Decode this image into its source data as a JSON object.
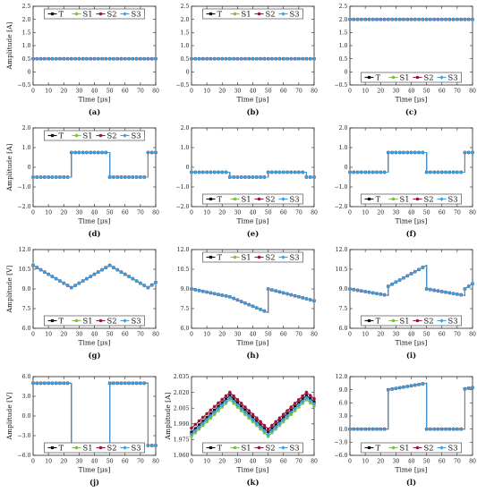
{
  "legend": {
    "series": [
      {
        "name": "T",
        "color": "#111111",
        "marker": "square"
      },
      {
        "name": "S1",
        "color": "#7cc242",
        "marker": "circle"
      },
      {
        "name": "S2",
        "color": "#a3123a",
        "marker": "circle"
      },
      {
        "name": "S3",
        "color": "#3b9ee0",
        "marker": "diamond"
      }
    ]
  },
  "chart_data": [
    {
      "type": "line",
      "label": "(a)",
      "xlabel": "Time [μs]",
      "ylabel": "Amplitude [A]",
      "xlim": [
        0,
        80
      ],
      "ylim": [
        -0.5,
        2.5
      ],
      "xticks": [
        "0",
        "10",
        "20",
        "30",
        "40",
        "50",
        "60",
        "70",
        "80"
      ],
      "yticks": [
        "−0.5",
        "0",
        "0.5",
        "1.0",
        "1.5",
        "2.0",
        "2.5"
      ],
      "legend_position": "top-center",
      "x": [
        0,
        80
      ],
      "series": [
        {
          "name": "T",
          "values": [
            0.5,
            0.5
          ]
        },
        {
          "name": "S1",
          "values": [
            0.5,
            0.5
          ]
        },
        {
          "name": "S2",
          "values": [
            0.5,
            0.5
          ]
        },
        {
          "name": "S3",
          "values": [
            0.5,
            0.5
          ]
        }
      ]
    },
    {
      "type": "line",
      "label": "(b)",
      "xlabel": "Time [μs]",
      "ylabel": "",
      "xlim": [
        0,
        80
      ],
      "ylim": [
        -0.5,
        2.5
      ],
      "xticks": [
        "0",
        "10",
        "20",
        "30",
        "40",
        "50",
        "60",
        "70",
        "80"
      ],
      "yticks": [
        "−0.5",
        "0",
        "0.5",
        "1.0",
        "1.5",
        "2.0",
        "2.5"
      ],
      "legend_position": "top-center",
      "x": [
        0,
        80
      ],
      "series": [
        {
          "name": "T",
          "values": [
            0.5,
            0.5
          ]
        },
        {
          "name": "S1",
          "values": [
            0.5,
            0.5
          ]
        },
        {
          "name": "S2",
          "values": [
            0.5,
            0.5
          ]
        },
        {
          "name": "S3",
          "values": [
            0.5,
            0.5
          ]
        }
      ]
    },
    {
      "type": "line",
      "label": "(c)",
      "xlabel": "Time [μs]",
      "ylabel": "",
      "xlim": [
        0,
        80
      ],
      "ylim": [
        -0.5,
        2.5
      ],
      "xticks": [
        "0",
        "10",
        "20",
        "30",
        "40",
        "50",
        "60",
        "70",
        "80"
      ],
      "yticks": [
        "−0.5",
        "0",
        "0.5",
        "1.0",
        "1.5",
        "2.0",
        "2.5"
      ],
      "legend_position": "bottom-center",
      "x": [
        0,
        80
      ],
      "series": [
        {
          "name": "T",
          "values": [
            2.0,
            2.0
          ]
        },
        {
          "name": "S1",
          "values": [
            2.0,
            2.0
          ]
        },
        {
          "name": "S2",
          "values": [
            2.0,
            2.0
          ]
        },
        {
          "name": "S3",
          "values": [
            2.0,
            2.0
          ]
        }
      ]
    },
    {
      "type": "line",
      "label": "(d)",
      "xlabel": "Time [μs]",
      "ylabel": "Amplitude [A]",
      "xlim": [
        0,
        80
      ],
      "ylim": [
        -2.0,
        2.0
      ],
      "xticks": [
        "0",
        "10",
        "20",
        "30",
        "40",
        "50",
        "60",
        "70",
        "80"
      ],
      "yticks": [
        "−2.0",
        "−1.0",
        "0",
        "1.0",
        "2.0"
      ],
      "legend_position": "top-center",
      "x": [
        0,
        25,
        25,
        50,
        50,
        75,
        75,
        80
      ],
      "series": [
        {
          "name": "T",
          "values": [
            -0.5,
            -0.5,
            0.75,
            0.75,
            -0.5,
            -0.5,
            0.75,
            0.75
          ]
        },
        {
          "name": "S1",
          "values": [
            -0.5,
            -0.5,
            0.75,
            0.75,
            -0.5,
            -0.5,
            0.75,
            0.75
          ]
        },
        {
          "name": "S2",
          "values": [
            -0.5,
            -0.5,
            0.75,
            0.75,
            -0.5,
            -0.5,
            0.75,
            0.75
          ]
        },
        {
          "name": "S3",
          "values": [
            -0.5,
            -0.5,
            0.75,
            0.75,
            -0.5,
            -0.5,
            0.75,
            0.75
          ]
        }
      ]
    },
    {
      "type": "line",
      "label": "(e)",
      "xlabel": "Time [μs]",
      "ylabel": "",
      "xlim": [
        0,
        80
      ],
      "ylim": [
        -2.0,
        2.0
      ],
      "xticks": [
        "0",
        "10",
        "20",
        "30",
        "40",
        "50",
        "60",
        "70",
        "80"
      ],
      "yticks": [
        "−2.0",
        "−1.0",
        "0",
        "1.0",
        "2.0"
      ],
      "legend_position": "bottom-center",
      "x": [
        0,
        25,
        25,
        50,
        50,
        75,
        75,
        80
      ],
      "series": [
        {
          "name": "T",
          "values": [
            -0.25,
            -0.25,
            -0.5,
            -0.5,
            -0.25,
            -0.25,
            -0.5,
            -0.5
          ]
        },
        {
          "name": "S1",
          "values": [
            -0.25,
            -0.25,
            -0.5,
            -0.5,
            -0.25,
            -0.25,
            -0.5,
            -0.5
          ]
        },
        {
          "name": "S2",
          "values": [
            -0.25,
            -0.25,
            -0.5,
            -0.5,
            -0.25,
            -0.25,
            -0.5,
            -0.5
          ]
        },
        {
          "name": "S3",
          "values": [
            -0.25,
            -0.25,
            -0.5,
            -0.5,
            -0.25,
            -0.25,
            -0.5,
            -0.5
          ]
        }
      ]
    },
    {
      "type": "line",
      "label": "(f)",
      "xlabel": "Time [μs]",
      "ylabel": "",
      "xlim": [
        0,
        80
      ],
      "ylim": [
        -2.0,
        2.0
      ],
      "xticks": [
        "0",
        "10",
        "20",
        "30",
        "40",
        "50",
        "60",
        "70",
        "80"
      ],
      "yticks": [
        "−2.0",
        "−1.0",
        "0",
        "1.0",
        "2.0"
      ],
      "legend_position": "bottom-center",
      "x": [
        0,
        25,
        25,
        50,
        50,
        75,
        75,
        80
      ],
      "series": [
        {
          "name": "T",
          "values": [
            -0.25,
            -0.25,
            0.75,
            0.75,
            -0.25,
            -0.25,
            0.75,
            0.75
          ]
        },
        {
          "name": "S1",
          "values": [
            -0.25,
            -0.25,
            0.75,
            0.75,
            -0.25,
            -0.25,
            0.75,
            0.75
          ]
        },
        {
          "name": "S2",
          "values": [
            -0.25,
            -0.25,
            0.75,
            0.75,
            -0.25,
            -0.25,
            0.75,
            0.75
          ]
        },
        {
          "name": "S3",
          "values": [
            -0.25,
            -0.25,
            0.75,
            0.75,
            -0.25,
            -0.25,
            0.75,
            0.75
          ]
        }
      ]
    },
    {
      "type": "line",
      "label": "(g)",
      "xlabel": "Time [μs]",
      "ylabel": "Amplitude [V]",
      "xlim": [
        0,
        80
      ],
      "ylim": [
        6.0,
        12.0
      ],
      "xticks": [
        "0",
        "10",
        "20",
        "30",
        "40",
        "50",
        "60",
        "70",
        "80"
      ],
      "yticks": [
        "6.0",
        "7.5",
        "9.0",
        "10.5",
        "12.0"
      ],
      "legend_position": "bottom-center",
      "x": [
        0,
        25,
        50,
        75,
        80
      ],
      "series": [
        {
          "name": "T",
          "values": [
            10.8,
            9.1,
            10.8,
            9.1,
            9.5
          ]
        },
        {
          "name": "S1",
          "values": [
            10.8,
            9.1,
            10.8,
            9.1,
            9.5
          ]
        },
        {
          "name": "S2",
          "values": [
            10.8,
            9.1,
            10.8,
            9.1,
            9.5
          ]
        },
        {
          "name": "S3",
          "values": [
            10.8,
            9.1,
            10.8,
            9.1,
            9.5
          ]
        }
      ]
    },
    {
      "type": "line",
      "label": "(h)",
      "xlabel": "Time [μs]",
      "ylabel": "",
      "xlim": [
        0,
        80
      ],
      "ylim": [
        6.0,
        12.0
      ],
      "xticks": [
        "0",
        "10",
        "20",
        "30",
        "40",
        "50",
        "60",
        "70",
        "80"
      ],
      "yticks": [
        "6.0",
        "7.5",
        "9.0",
        "10.5",
        "12.0"
      ],
      "legend_position": "top-center",
      "x": [
        0,
        25,
        50,
        50,
        80
      ],
      "series": [
        {
          "name": "T",
          "values": [
            9.0,
            8.4,
            7.2,
            9.0,
            8.1
          ]
        },
        {
          "name": "S1",
          "values": [
            9.0,
            8.4,
            7.2,
            9.0,
            8.1
          ]
        },
        {
          "name": "S2",
          "values": [
            9.0,
            8.4,
            7.2,
            9.0,
            8.1
          ]
        },
        {
          "name": "S3",
          "values": [
            9.0,
            8.4,
            7.2,
            9.0,
            8.1
          ]
        }
      ]
    },
    {
      "type": "line",
      "label": "(i)",
      "xlabel": "Time [μs]",
      "ylabel": "",
      "xlim": [
        0,
        80
      ],
      "ylim": [
        6.0,
        12.0
      ],
      "xticks": [
        "0",
        "10",
        "20",
        "30",
        "40",
        "50",
        "60",
        "70",
        "80"
      ],
      "yticks": [
        "6.0",
        "7.5",
        "9.0",
        "10.5",
        "12.0"
      ],
      "legend_position": "bottom-center",
      "x": [
        0,
        25,
        25,
        50,
        50,
        75,
        75,
        80
      ],
      "series": [
        {
          "name": "T",
          "values": [
            9.0,
            8.5,
            9.2,
            10.8,
            9.0,
            8.5,
            9.0,
            9.4
          ]
        },
        {
          "name": "S1",
          "values": [
            9.0,
            8.5,
            9.2,
            10.8,
            9.0,
            8.5,
            9.0,
            9.4
          ]
        },
        {
          "name": "S2",
          "values": [
            9.0,
            8.5,
            9.2,
            10.8,
            9.0,
            8.5,
            9.0,
            9.4
          ]
        },
        {
          "name": "S3",
          "values": [
            9.0,
            8.5,
            9.2,
            10.8,
            9.0,
            8.5,
            9.0,
            9.4
          ]
        }
      ]
    },
    {
      "type": "line",
      "label": "(j)",
      "xlabel": "Time [μs]",
      "ylabel": "Amplitude [V]",
      "xlim": [
        0,
        80
      ],
      "ylim": [
        -6.0,
        6.0
      ],
      "xticks": [
        "0",
        "10",
        "20",
        "30",
        "40",
        "50",
        "60",
        "70",
        "80"
      ],
      "yticks": [
        "−6.0",
        "−3.0",
        "0.0",
        "3.0",
        "6.0"
      ],
      "legend_position": "bottom-center",
      "x": [
        0,
        25,
        25,
        50,
        50,
        75,
        75,
        80
      ],
      "series": [
        {
          "name": "T",
          "values": [
            5.0,
            5.0,
            -4.5,
            -4.8,
            5.0,
            5.0,
            -4.5,
            -4.5
          ]
        },
        {
          "name": "S1",
          "values": [
            5.0,
            5.0,
            -4.5,
            -5.5,
            5.0,
            5.0,
            -4.5,
            -4.5
          ]
        },
        {
          "name": "S2",
          "values": [
            5.0,
            5.0,
            -4.5,
            -5.5,
            5.0,
            5.0,
            -4.5,
            -4.5
          ]
        },
        {
          "name": "S3",
          "values": [
            5.0,
            5.0,
            -4.5,
            -5.5,
            5.0,
            5.0,
            -4.5,
            -4.5
          ]
        }
      ]
    },
    {
      "type": "line",
      "label": "(k)",
      "xlabel": "Time [μs]",
      "ylabel": "Amplitude [A]",
      "xlim": [
        0,
        80
      ],
      "ylim": [
        1.96,
        2.035
      ],
      "xticks": [
        "0",
        "10",
        "20",
        "30",
        "40",
        "50",
        "60",
        "70",
        "80"
      ],
      "yticks": [
        "1.960",
        "1.975",
        "1.990",
        "2.005",
        "2.020",
        "2.035"
      ],
      "legend_position": "bottom-center",
      "x": [
        0,
        25,
        50,
        75,
        80
      ],
      "series": [
        {
          "name": "T",
          "values": [
            1.982,
            2.017,
            1.982,
            2.017,
            2.011
          ]
        },
        {
          "name": "S1",
          "values": [
            1.978,
            2.013,
            1.978,
            2.013,
            2.007
          ]
        },
        {
          "name": "S2",
          "values": [
            1.986,
            2.02,
            1.985,
            2.02,
            2.014
          ]
        },
        {
          "name": "S3",
          "values": [
            1.98,
            2.015,
            1.98,
            2.015,
            2.009
          ]
        }
      ]
    },
    {
      "type": "line",
      "label": "(l)",
      "xlabel": "Time [μs]",
      "ylabel": "",
      "xlim": [
        0,
        80
      ],
      "ylim": [
        -6.0,
        12.0
      ],
      "xticks": [
        "0",
        "10",
        "20",
        "30",
        "40",
        "50",
        "60",
        "70",
        "80"
      ],
      "yticks": [
        "−6.0",
        "−3.0",
        "0.0",
        "3.0",
        "6.0",
        "9.0",
        "12.0"
      ],
      "legend_position": "bottom-center",
      "x": [
        0,
        25,
        25,
        50,
        50,
        75,
        75,
        80
      ],
      "series": [
        {
          "name": "T",
          "values": [
            0,
            0,
            9.0,
            10.5,
            0,
            0,
            9.2,
            9.5
          ]
        },
        {
          "name": "S1",
          "values": [
            0,
            0,
            9.0,
            10.5,
            0,
            0,
            9.2,
            9.5
          ]
        },
        {
          "name": "S2",
          "values": [
            0,
            0,
            9.0,
            10.5,
            0,
            0,
            9.2,
            9.5
          ]
        },
        {
          "name": "S3",
          "values": [
            0,
            0,
            9.0,
            10.5,
            0,
            0,
            9.2,
            9.5
          ]
        }
      ]
    }
  ]
}
